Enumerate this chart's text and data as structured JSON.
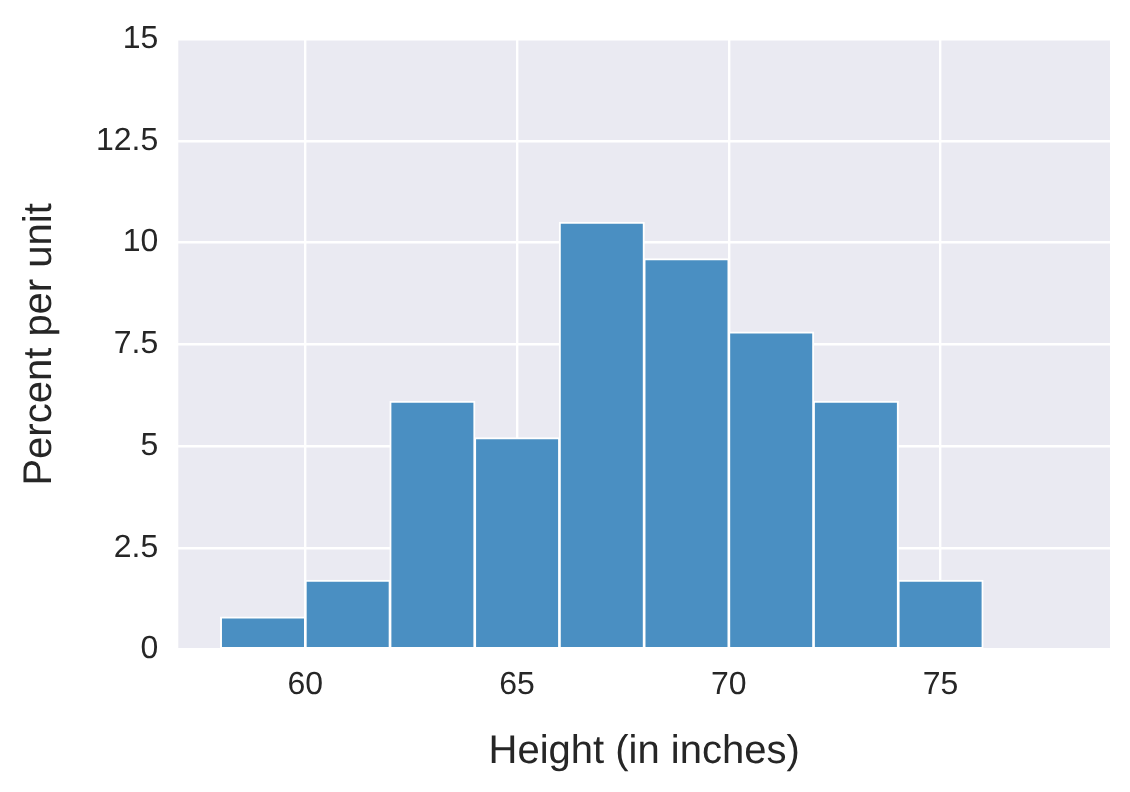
{
  "chart_data": {
    "type": "histogram",
    "xlabel": "Height (in inches)",
    "ylabel": "Percent per unit",
    "bins": [
      58,
      60,
      62,
      64,
      66,
      68,
      70,
      72,
      74,
      76
    ],
    "values": [
      0.8,
      1.7,
      6.1,
      5.2,
      10.5,
      9.6,
      7.8,
      6.1,
      1.7
    ],
    "color": "#4a8fc2",
    "xlim": [
      57,
      79
    ],
    "xticks": [
      60,
      65,
      70,
      75
    ],
    "ylim": [
      0,
      15
    ],
    "yticks": [
      0,
      2.5,
      5,
      7.5,
      10,
      12.5,
      15
    ],
    "grid": true,
    "legend": false
  }
}
